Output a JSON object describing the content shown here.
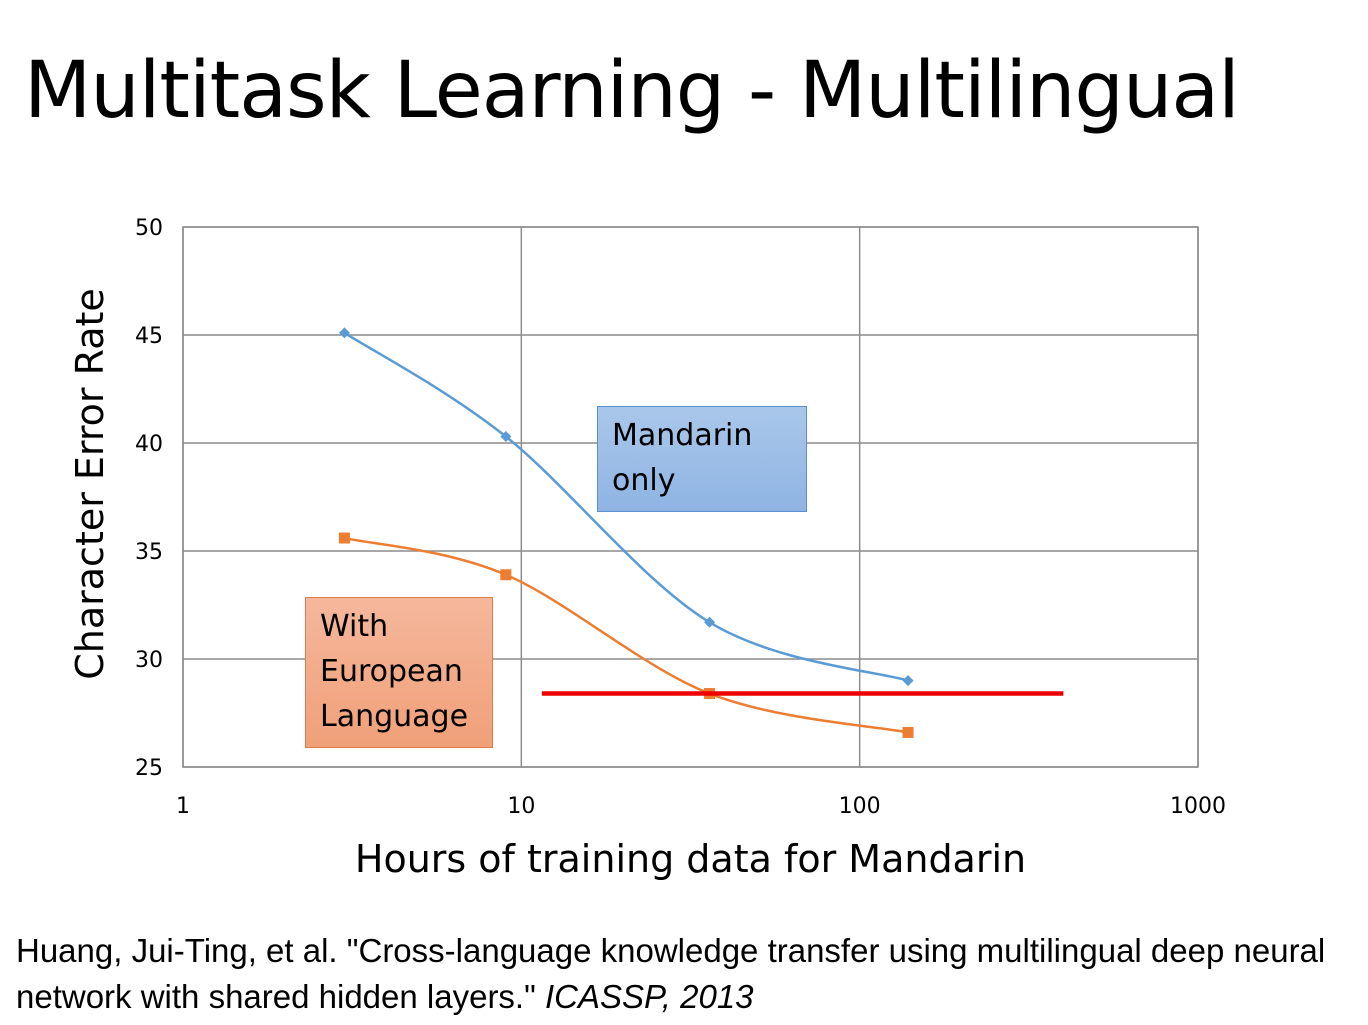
{
  "slide": {
    "title": "Multitask Learning - Multilingual",
    "citation_text": "Huang, Jui-Ting, et al. \"Cross-language knowledge transfer using multilingual deep neural network with shared hidden layers.\" ",
    "citation_venue": "ICASSP, 2013",
    "callouts": {
      "mandarin_line1": "Mandarin",
      "mandarin_line2": "only",
      "european_line1": "With",
      "european_line2": "European",
      "european_line3": "Language"
    }
  },
  "chart_data": {
    "type": "line",
    "title": "",
    "xlabel": "Hours of training data for Mandarin",
    "ylabel": "Character Error Rate",
    "xscale": "log",
    "xlim": [
      1,
      1000
    ],
    "ylim": [
      25,
      50
    ],
    "xticks": [
      1,
      10,
      100,
      1000
    ],
    "xtick_labels": [
      "1",
      "10",
      "100",
      "1000"
    ],
    "yticks": [
      25,
      30,
      35,
      40,
      45,
      50
    ],
    "ytick_labels": [
      "25",
      "30",
      "35",
      "40",
      "45",
      "50"
    ],
    "grid": true,
    "series": [
      {
        "color": "#5b9bd5",
        "marker": "diamond",
        "x": [
          3,
          9,
          36,
          139
        ],
        "y": [
          45.1,
          40.3,
          31.7,
          29.0
        ]
      },
      {
        "color": "#ed7d31",
        "marker": "square",
        "x": [
          3,
          9,
          36,
          139
        ],
        "y": [
          35.6,
          33.9,
          28.4,
          26.6
        ]
      }
    ],
    "reference_line": {
      "color": "#ee0000",
      "x": [
        11.5,
        400
      ],
      "y": 28.4
    }
  }
}
